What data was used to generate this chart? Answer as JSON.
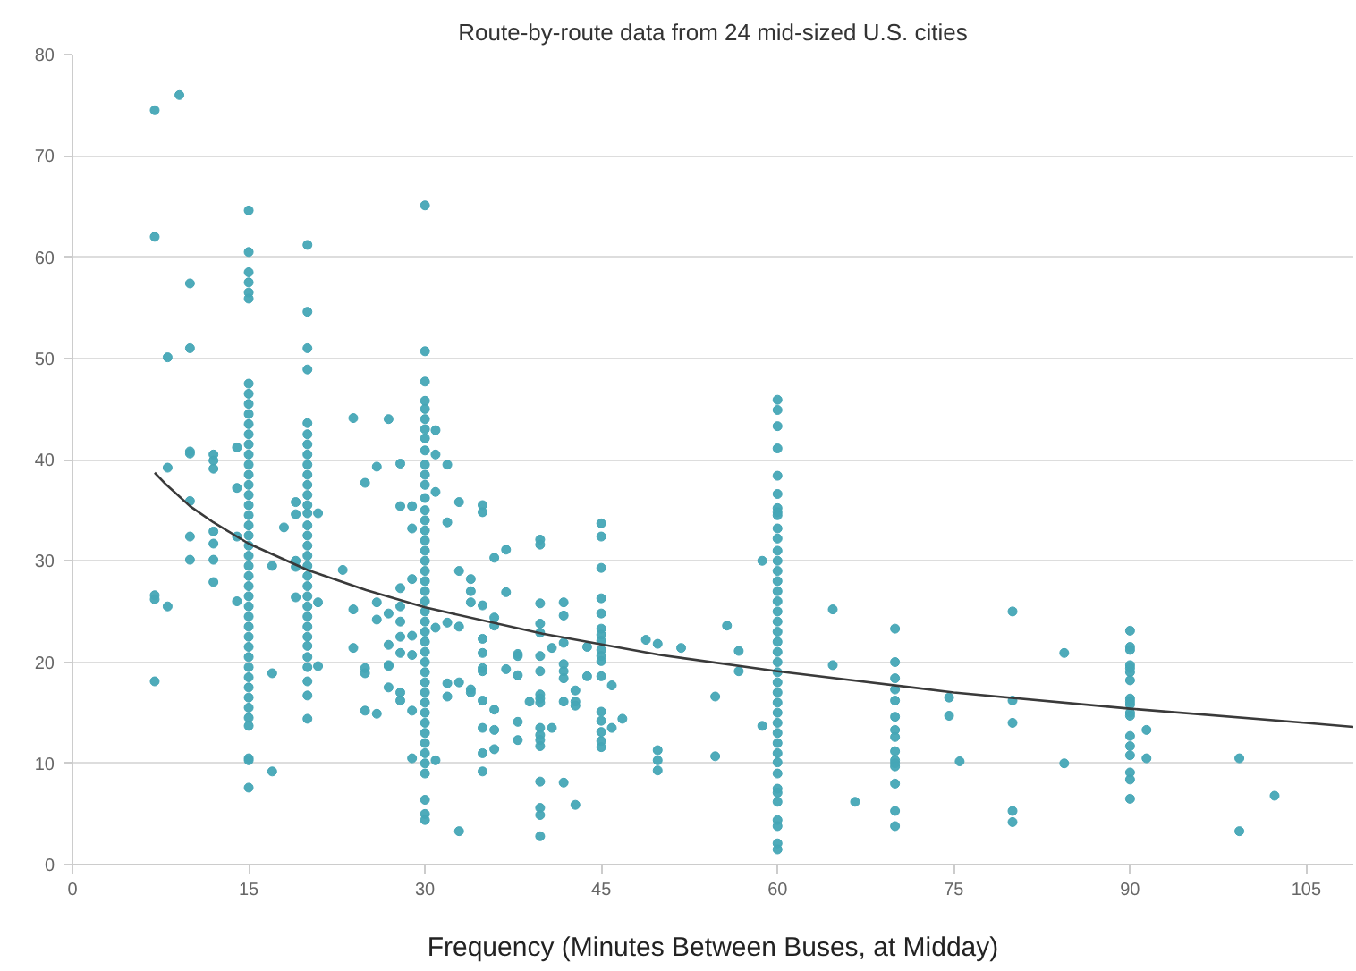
{
  "chart_data": {
    "type": "scatter",
    "title": "Route-by-route data from 24 mid-sized U.S. cities",
    "xlabel": "Frequency (Minutes Between Buses, at Midday)",
    "xlim": [
      0,
      109
    ],
    "ylim": [
      0,
      80
    ],
    "xticks": [
      0,
      15,
      30,
      45,
      60,
      75,
      90,
      105
    ],
    "yticks": [
      0,
      10,
      20,
      30,
      40,
      50,
      60,
      70,
      80
    ],
    "grid": "y",
    "series": [
      {
        "marker": "circle",
        "color": "#45a6b6",
        "x": [
          7,
          7,
          7,
          7,
          7,
          8.1,
          8.1,
          8.1,
          9.1,
          10,
          10,
          10,
          10,
          10,
          10,
          10,
          12,
          12,
          12,
          12,
          12,
          12,
          12,
          14,
          14,
          14,
          14,
          15,
          15,
          15,
          15,
          15,
          15,
          15,
          15,
          15,
          15,
          15,
          15,
          15,
          15,
          15,
          15,
          15,
          15,
          15,
          15,
          15,
          15,
          15,
          15,
          15,
          15,
          15,
          15,
          15,
          15,
          15,
          15,
          15,
          15,
          15,
          15,
          15,
          15,
          15,
          15,
          15,
          15,
          15,
          15,
          17,
          17,
          17,
          18,
          19,
          19,
          19,
          19,
          19,
          20,
          20,
          20,
          20,
          20,
          20,
          20,
          20,
          20,
          20,
          20,
          20,
          20,
          20,
          20,
          20,
          20,
          20,
          20,
          20,
          20,
          20,
          20,
          20,
          20,
          20,
          20,
          20,
          20,
          20,
          20,
          20,
          20.9,
          20.9,
          20.9,
          23,
          23.9,
          23.9,
          23.9,
          24.9,
          24.9,
          24.9,
          24.9,
          25.9,
          25.9,
          25.9,
          25.9,
          26.9,
          26.9,
          26.9,
          26.9,
          26.9,
          26.9,
          27.9,
          27.9,
          27.9,
          27.9,
          27.9,
          27.9,
          27.9,
          27.9,
          27.9,
          28.9,
          28.9,
          28.9,
          28.9,
          28.9,
          28.9,
          28.9,
          30,
          30,
          30,
          30,
          30,
          30,
          30,
          30,
          30,
          30,
          30,
          30,
          30,
          30,
          30,
          30,
          30,
          30,
          30,
          30,
          30,
          30,
          30,
          30,
          30,
          30,
          30,
          30,
          30,
          30,
          30,
          30,
          30,
          30,
          30,
          30,
          30,
          30,
          30,
          30,
          30,
          30,
          30,
          30.9,
          30.9,
          30.9,
          30.9,
          30.9,
          31.9,
          31.9,
          31.9,
          31.9,
          31.9,
          32.9,
          32.9,
          32.9,
          32.9,
          32.9,
          33.9,
          33.9,
          33.9,
          33.9,
          33.9,
          34.9,
          34.9,
          34.9,
          34.9,
          34.9,
          34.9,
          34.9,
          34.9,
          34.9,
          34.9,
          34.9,
          35.9,
          35.9,
          35.9,
          35.9,
          35.9,
          35.9,
          36.9,
          36.9,
          36.9,
          37.9,
          37.9,
          37.9,
          37.9,
          37.9,
          38.9,
          39.8,
          39.8,
          39.8,
          39.8,
          39.8,
          39.8,
          39.8,
          39.8,
          39.8,
          39.8,
          39.8,
          39.8,
          39.8,
          39.8,
          39.8,
          39.8,
          39.8,
          39.8,
          40.8,
          40.8,
          41.8,
          41.8,
          41.8,
          41.8,
          41.8,
          41.8,
          41.8,
          41.8,
          42.8,
          42.8,
          42.8,
          42.8,
          43.8,
          43.8,
          45,
          45,
          45,
          45,
          45,
          45,
          45,
          45,
          45,
          45,
          45,
          45,
          45,
          45,
          45,
          45,
          45,
          45.9,
          45.9,
          46.8,
          48.8,
          49.8,
          49.8,
          49.8,
          49.8,
          51.8,
          54.7,
          54.7,
          55.7,
          56.7,
          56.7,
          58.7,
          58.7,
          60,
          60,
          60,
          60,
          60,
          60,
          60,
          60,
          60,
          60,
          60,
          60,
          60,
          60,
          60,
          60,
          60,
          60,
          60,
          60,
          60,
          60,
          60,
          60,
          60,
          60,
          60,
          60,
          60,
          60,
          60,
          60,
          60,
          60,
          60,
          60,
          60,
          60,
          60,
          60,
          60,
          64.7,
          64.7,
          66.6,
          70,
          70,
          70,
          70,
          70,
          70,
          70,
          70,
          70,
          70,
          70,
          70,
          70,
          70,
          70,
          74.6,
          74.6,
          75.5,
          80,
          80,
          80,
          80,
          80,
          84.4,
          84.4,
          90,
          90,
          90,
          90,
          90,
          90,
          90,
          90,
          90,
          90,
          90,
          90,
          90,
          90,
          90,
          90,
          90,
          90,
          91.4,
          91.4,
          99.3,
          99.3,
          102.3
        ],
        "values": [
          74.5,
          62,
          26.6,
          26.2,
          18.1,
          50.1,
          39.2,
          25.5,
          76,
          57.4,
          51,
          40.8,
          40.6,
          35.9,
          32.4,
          30.1,
          40.5,
          39.9,
          39.1,
          32.9,
          31.7,
          30.1,
          27.9,
          41.2,
          37.2,
          32.4,
          26,
          64.6,
          60.5,
          58.5,
          57.5,
          56.5,
          55.9,
          47.5,
          46.5,
          45.5,
          44.5,
          43.5,
          42.5,
          41.5,
          40.5,
          39.5,
          38.5,
          37.5,
          36.5,
          35.5,
          34.5,
          33.5,
          32.5,
          31.5,
          30.5,
          29.5,
          28.5,
          27.5,
          26.5,
          25.5,
          24.5,
          23.5,
          22.5,
          21.5,
          20.5,
          19.5,
          18.5,
          17.5,
          16.5,
          15.5,
          14.5,
          13.7,
          10.5,
          10.3,
          7.6,
          29.5,
          18.9,
          9.2,
          33.3,
          35.8,
          34.6,
          30,
          29.4,
          26.4,
          61.2,
          54.6,
          51,
          48.9,
          43.6,
          42.5,
          41.5,
          40.5,
          39.5,
          38.5,
          37.5,
          36.5,
          35.5,
          34.7,
          33.5,
          32.5,
          31.5,
          30.5,
          29.5,
          28.5,
          27.5,
          26.5,
          25.5,
          24.5,
          23.5,
          22.5,
          21.6,
          20.5,
          19.5,
          18.1,
          16.7,
          14.4,
          34.7,
          25.9,
          19.6,
          29.1,
          44.1,
          25.2,
          21.4,
          37.7,
          19.4,
          18.9,
          15.2,
          39.3,
          25.9,
          24.2,
          14.9,
          44,
          24.8,
          21.7,
          19.7,
          19.6,
          17.5,
          39.6,
          35.4,
          27.3,
          25.5,
          24,
          22.5,
          20.9,
          17,
          16.2,
          35.4,
          33.2,
          28.2,
          22.6,
          20.7,
          15.2,
          10.5,
          65.1,
          50.7,
          47.7,
          45.8,
          45,
          44,
          43,
          42.1,
          40.9,
          39.5,
          38.5,
          37.5,
          36.2,
          35,
          34,
          33,
          32,
          31,
          30,
          29,
          28,
          27,
          26,
          25,
          24,
          23,
          22,
          21,
          20,
          19,
          18,
          17,
          16,
          15,
          14,
          13,
          12,
          11,
          10,
          9,
          6.4,
          5,
          4.4,
          42.9,
          40.5,
          36.8,
          23.4,
          10.3,
          39.5,
          33.8,
          23.9,
          17.9,
          16.6,
          35.8,
          29,
          23.5,
          18,
          3.3,
          28.2,
          27,
          25.9,
          17.3,
          17,
          35.5,
          34.8,
          25.6,
          22.3,
          20.9,
          19.4,
          19.1,
          16.2,
          13.5,
          11,
          9.2,
          30.3,
          24.4,
          23.6,
          15.3,
          13.3,
          11.4,
          31.1,
          26.9,
          19.3,
          20.8,
          20.6,
          18.7,
          14.1,
          12.3,
          16.1,
          32.1,
          31.6,
          25.8,
          23.8,
          22.9,
          20.6,
          19.1,
          16.8,
          16.4,
          16,
          13.5,
          12.8,
          12.3,
          11.7,
          8.2,
          5.6,
          4.9,
          2.8,
          21.4,
          13.5,
          25.9,
          24.6,
          21.9,
          19.8,
          19.1,
          18.4,
          16.1,
          8.1,
          17.2,
          16.1,
          15.7,
          5.9,
          21.5,
          18.6,
          33.7,
          32.4,
          29.3,
          26.3,
          24.8,
          23.3,
          22.7,
          22.1,
          21.2,
          20.6,
          20.1,
          18.6,
          15.1,
          14.2,
          13.1,
          12.2,
          11.6,
          17.7,
          13.5,
          14.4,
          22.2,
          21.8,
          11.3,
          10.3,
          9.3,
          21.4,
          16.6,
          10.7,
          23.6,
          21.1,
          19.1,
          30,
          13.7,
          45.9,
          44.9,
          43.3,
          41.1,
          38.4,
          36.6,
          35.2,
          34.8,
          34.5,
          33.2,
          32.2,
          31,
          30,
          29,
          28,
          27,
          26,
          25,
          24,
          23,
          22,
          21,
          20,
          19,
          18,
          17,
          16,
          15,
          14,
          13,
          12,
          11,
          10.1,
          9,
          7.5,
          7.1,
          6.2,
          4.4,
          3.8,
          2.1,
          1.5,
          25.2,
          19.7,
          6.2,
          23.3,
          20,
          18.4,
          17.3,
          16.2,
          14.6,
          13.3,
          12.6,
          11.2,
          10.3,
          10,
          9.7,
          8,
          5.3,
          3.8,
          16.5,
          14.7,
          10.2,
          25,
          16.2,
          14,
          5.3,
          4.2,
          20.9,
          10,
          23.1,
          21.5,
          21.2,
          19.7,
          19.4,
          19,
          18.2,
          16.4,
          16.1,
          15.8,
          15,
          14.7,
          12.7,
          11.7,
          10.8,
          9.1,
          8.4,
          6.5,
          13.3,
          10.5,
          10.5,
          3.3,
          6.8
        ]
      },
      {
        "type": "line",
        "marker": "none",
        "color": "#3a3a3a",
        "x": [
          7,
          8,
          10,
          12,
          15,
          20,
          25,
          30,
          40,
          50,
          60,
          75,
          90,
          105,
          109
        ],
        "values": [
          38.7,
          37.5,
          35.4,
          33.8,
          31.7,
          29.1,
          27.1,
          25.4,
          22.8,
          20.7,
          19.1,
          17.0,
          15.4,
          14.0,
          13.6
        ]
      }
    ]
  }
}
